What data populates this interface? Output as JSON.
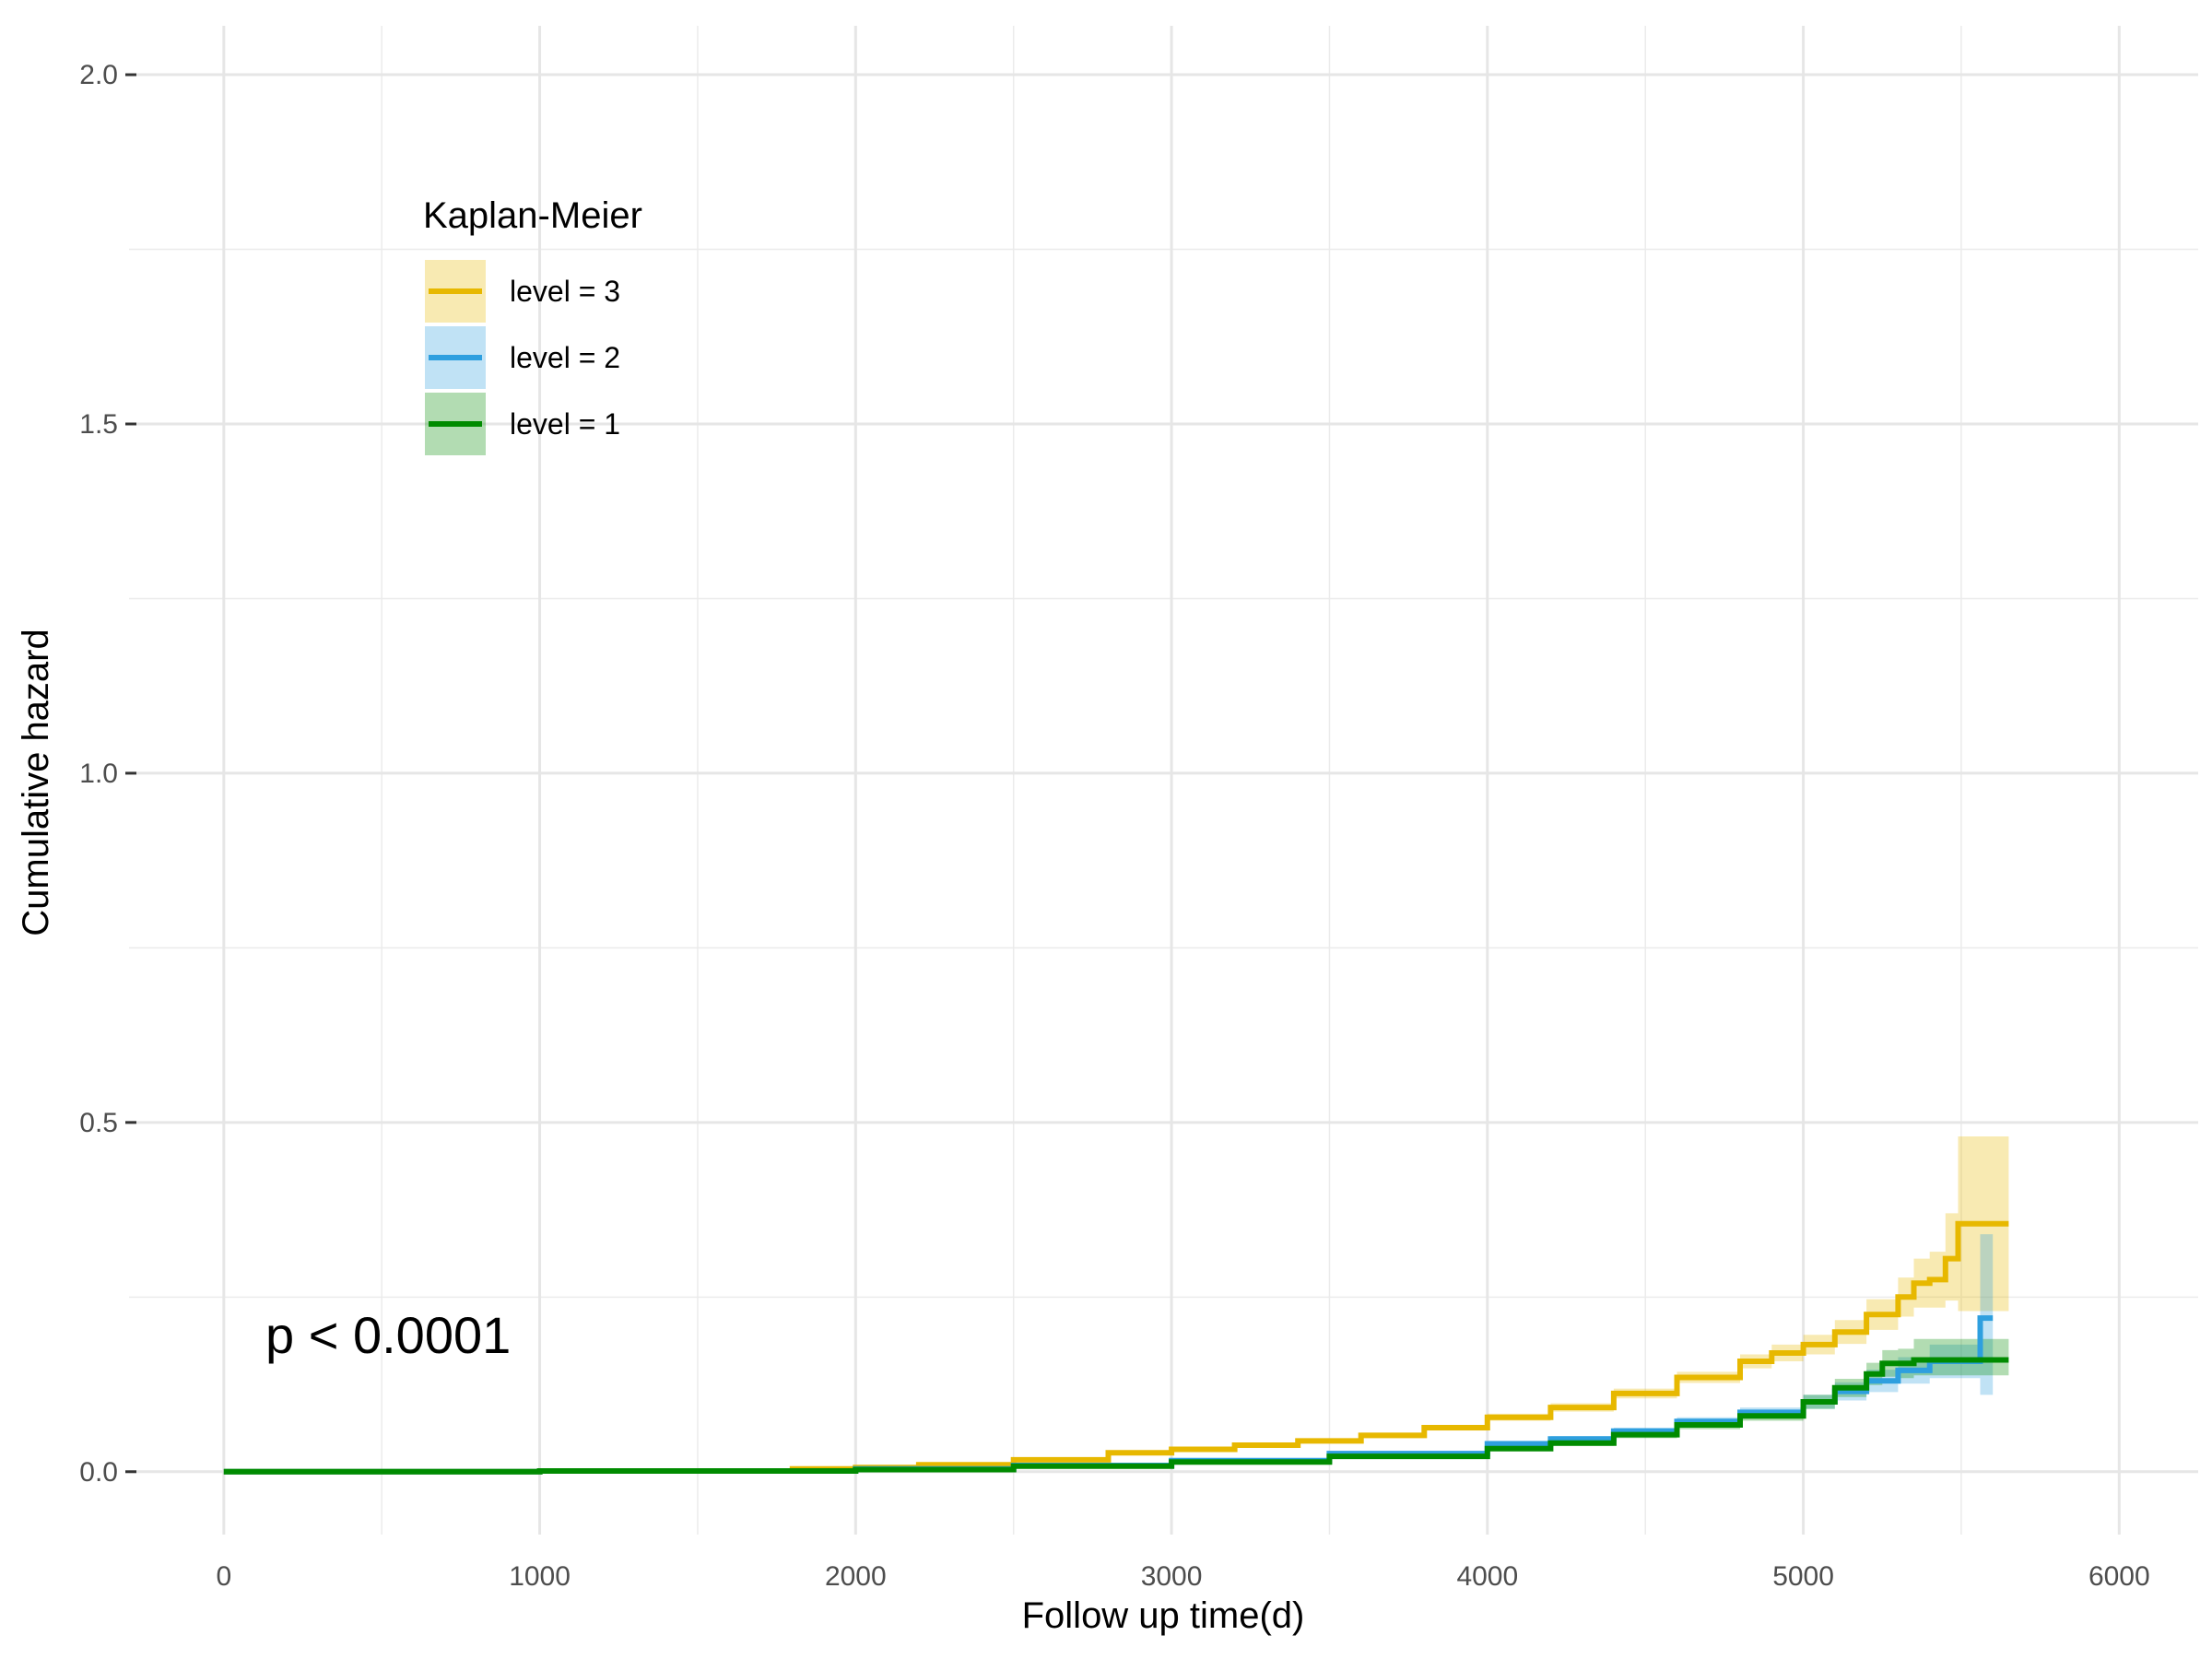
{
  "chart_data": {
    "type": "line",
    "xlabel": "Follow up time(d)",
    "ylabel": "Cumulative hazard",
    "xlim": [
      -300,
      6250
    ],
    "ylim": [
      -0.09,
      2.07
    ],
    "x_ticks": [
      0,
      1000,
      2000,
      3000,
      4000,
      5000,
      6000
    ],
    "x_tick_labels": [
      "0",
      "1000",
      "2000",
      "3000",
      "4000",
      "5000",
      "6000"
    ],
    "y_ticks": [
      0.0,
      0.5,
      1.0,
      1.5,
      2.0
    ],
    "y_tick_labels": [
      "0.0",
      "0.5",
      "1.0",
      "1.5",
      "2.0"
    ],
    "grid": true,
    "step": true,
    "legend": {
      "title": "Kaplan-Meier",
      "placement": "top-left"
    },
    "annotation": "p < 0.0001",
    "series": [
      {
        "name": "level = 3",
        "color": "#E7B800",
        "x": [
          0,
          1000,
          1800,
          2000,
          2200,
          2500,
          2800,
          3000,
          3200,
          3400,
          3600,
          3800,
          4000,
          4200,
          4400,
          4600,
          4800,
          4900,
          5000,
          5100,
          5200,
          5300,
          5350,
          5400,
          5450,
          5490,
          5650
        ],
        "y": [
          0,
          0.001,
          0.004,
          0.006,
          0.01,
          0.017,
          0.027,
          0.032,
          0.038,
          0.044,
          0.052,
          0.063,
          0.078,
          0.092,
          0.112,
          0.135,
          0.158,
          0.17,
          0.182,
          0.2,
          0.225,
          0.25,
          0.27,
          0.275,
          0.305,
          0.355,
          0.355
        ],
        "lower": [
          0,
          0.001,
          0.003,
          0.005,
          0.009,
          0.015,
          0.024,
          0.029,
          0.035,
          0.041,
          0.048,
          0.059,
          0.073,
          0.086,
          0.105,
          0.127,
          0.148,
          0.158,
          0.168,
          0.183,
          0.203,
          0.222,
          0.235,
          0.235,
          0.245,
          0.23,
          0.23
        ],
        "upper": [
          0,
          0.001,
          0.005,
          0.007,
          0.011,
          0.019,
          0.03,
          0.035,
          0.041,
          0.047,
          0.056,
          0.067,
          0.083,
          0.098,
          0.119,
          0.143,
          0.168,
          0.182,
          0.196,
          0.217,
          0.247,
          0.278,
          0.305,
          0.315,
          0.37,
          0.48,
          0.48
        ]
      },
      {
        "name": "level = 2",
        "color": "#2E9FDF",
        "x": [
          0,
          1000,
          2000,
          2500,
          3000,
          3500,
          4000,
          4200,
          4400,
          4600,
          4800,
          5000,
          5100,
          5200,
          5300,
          5400,
          5500,
          5560,
          5600
        ],
        "y": [
          0,
          0.001,
          0.004,
          0.009,
          0.016,
          0.026,
          0.04,
          0.047,
          0.058,
          0.072,
          0.085,
          0.1,
          0.115,
          0.13,
          0.145,
          0.158,
          0.158,
          0.22,
          0.22
        ],
        "lower": [
          0,
          0.001,
          0.003,
          0.008,
          0.014,
          0.023,
          0.036,
          0.043,
          0.053,
          0.066,
          0.078,
          0.09,
          0.102,
          0.114,
          0.126,
          0.134,
          0.134,
          0.11,
          0.11
        ],
        "upper": [
          0,
          0.001,
          0.005,
          0.01,
          0.018,
          0.029,
          0.044,
          0.051,
          0.063,
          0.078,
          0.092,
          0.11,
          0.128,
          0.146,
          0.164,
          0.182,
          0.182,
          0.34,
          0.34
        ]
      },
      {
        "name": "level = 1",
        "color": "#008B00",
        "x": [
          0,
          1000,
          2000,
          2500,
          3000,
          3500,
          4000,
          4200,
          4400,
          4600,
          4800,
          5000,
          5100,
          5200,
          5250,
          5300,
          5350,
          5650
        ],
        "y": [
          0,
          0.001,
          0.003,
          0.008,
          0.014,
          0.022,
          0.033,
          0.041,
          0.053,
          0.067,
          0.08,
          0.1,
          0.12,
          0.14,
          0.155,
          0.155,
          0.16,
          0.16
        ],
        "lower": [
          0,
          0.001,
          0.002,
          0.007,
          0.012,
          0.02,
          0.03,
          0.037,
          0.048,
          0.061,
          0.073,
          0.09,
          0.107,
          0.124,
          0.136,
          0.134,
          0.138,
          0.138
        ],
        "upper": [
          0,
          0.001,
          0.004,
          0.009,
          0.016,
          0.024,
          0.036,
          0.045,
          0.058,
          0.073,
          0.087,
          0.11,
          0.133,
          0.156,
          0.174,
          0.176,
          0.19,
          0.19
        ]
      }
    ]
  }
}
